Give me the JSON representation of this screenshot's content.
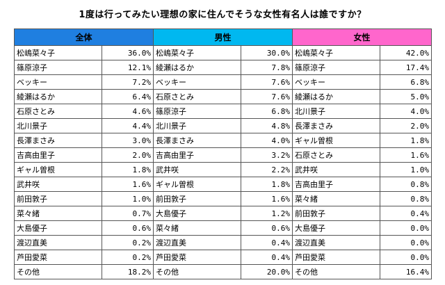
{
  "title": "1度は行ってみたい理想の家に住んでそうな女性有名人は誰ですか？",
  "colors": {
    "all": "#1f7fe0",
    "male": "#00b8f0",
    "female": "#ff66cc"
  },
  "chart_data": {
    "type": "table",
    "title": "1度は行ってみたい理想の家に住んでそうな女性有名人は誰ですか？",
    "columns": [
      {
        "header": "全体",
        "rows": [
          {
            "name": "松嶋菜々子",
            "value": "36.0%"
          },
          {
            "name": "篠原涼子",
            "value": "12.1%"
          },
          {
            "name": "ベッキー",
            "value": "7.2%"
          },
          {
            "name": "綾瀬はるか",
            "value": "6.4%"
          },
          {
            "name": "石原さとみ",
            "value": "4.6%"
          },
          {
            "name": "北川景子",
            "value": "4.4%"
          },
          {
            "name": "長澤まさみ",
            "value": "3.0%"
          },
          {
            "name": "吉高由里子",
            "value": "2.0%"
          },
          {
            "name": "ギャル曽根",
            "value": "1.8%"
          },
          {
            "name": "武井咲",
            "value": "1.6%"
          },
          {
            "name": "前田敦子",
            "value": "1.0%"
          },
          {
            "name": "菜々緒",
            "value": "0.7%"
          },
          {
            "name": "大島優子",
            "value": "0.6%"
          },
          {
            "name": "渡辺直美",
            "value": "0.2%"
          },
          {
            "name": "芦田愛菜",
            "value": "0.2%"
          },
          {
            "name": "その他",
            "value": "18.2%"
          }
        ]
      },
      {
        "header": "男性",
        "rows": [
          {
            "name": "松嶋菜々子",
            "value": "30.0%"
          },
          {
            "name": "綾瀬はるか",
            "value": "7.8%"
          },
          {
            "name": "ベッキー",
            "value": "7.6%"
          },
          {
            "name": "石原さとみ",
            "value": "7.6%"
          },
          {
            "name": "篠原涼子",
            "value": "6.8%"
          },
          {
            "name": "北川景子",
            "value": "4.8%"
          },
          {
            "name": "長澤まさみ",
            "value": "4.0%"
          },
          {
            "name": "吉高由里子",
            "value": "3.2%"
          },
          {
            "name": "武井咲",
            "value": "2.2%"
          },
          {
            "name": "ギャル曽根",
            "value": "1.8%"
          },
          {
            "name": "前田敦子",
            "value": "1.6%"
          },
          {
            "name": "大島優子",
            "value": "1.2%"
          },
          {
            "name": "菜々緒",
            "value": "0.6%"
          },
          {
            "name": "渡辺直美",
            "value": "0.4%"
          },
          {
            "name": "芦田愛菜",
            "value": "0.4%"
          },
          {
            "name": "その他",
            "value": "20.0%"
          }
        ]
      },
      {
        "header": "女性",
        "rows": [
          {
            "name": "松嶋菜々子",
            "value": "42.0%"
          },
          {
            "name": "篠原涼子",
            "value": "17.4%"
          },
          {
            "name": "ベッキー",
            "value": "6.8%"
          },
          {
            "name": "綾瀬はるか",
            "value": "5.0%"
          },
          {
            "name": "北川景子",
            "value": "4.0%"
          },
          {
            "name": "長澤まさみ",
            "value": "2.0%"
          },
          {
            "name": "ギャル曽根",
            "value": "1.8%"
          },
          {
            "name": "石原さとみ",
            "value": "1.6%"
          },
          {
            "name": "武井咲",
            "value": "1.0%"
          },
          {
            "name": "吉高由里子",
            "value": "0.8%"
          },
          {
            "name": "菜々緒",
            "value": "0.8%"
          },
          {
            "name": "前田敦子",
            "value": "0.4%"
          },
          {
            "name": "大島優子",
            "value": "0.0%"
          },
          {
            "name": "渡辺直美",
            "value": "0.0%"
          },
          {
            "name": "芦田愛菜",
            "value": "0.0%"
          },
          {
            "name": "その他",
            "value": "16.4%"
          }
        ]
      }
    ]
  }
}
